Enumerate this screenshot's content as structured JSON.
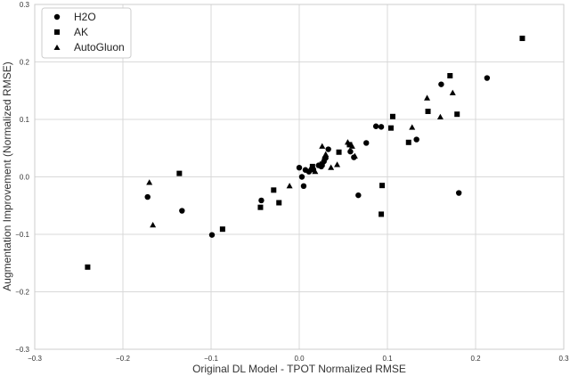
{
  "chart_data": {
    "type": "scatter",
    "xlabel": "Original DL Model - TPOT Normalized RMSE",
    "ylabel": "Augmentation Improvement (Normalized RMSE)",
    "xlim": [
      -0.3,
      0.3
    ],
    "ylim": [
      -0.3,
      0.3
    ],
    "xticks": [
      -0.3,
      -0.2,
      -0.1,
      0.0,
      0.1,
      0.2,
      0.3
    ],
    "yticks": [
      -0.3,
      -0.2,
      -0.1,
      0.0,
      0.1,
      0.2,
      0.3
    ],
    "xtick_labels": [
      "−0.3",
      "−0.2",
      "−0.1",
      "0.0",
      "0.1",
      "0.2",
      "0.3"
    ],
    "ytick_labels": [
      "−0.3",
      "−0.2",
      "−0.1",
      "0.0",
      "0.1",
      "0.2",
      "0.3"
    ],
    "grid": true,
    "legend_position": "top-left",
    "series": [
      {
        "name": "H2O",
        "marker": "circle",
        "points": [
          [
            -0.172,
            -0.035
          ],
          [
            -0.133,
            -0.059
          ],
          [
            -0.099,
            -0.101
          ],
          [
            -0.043,
            -0.041
          ],
          [
            0.0,
            0.016
          ],
          [
            0.003,
            0.0
          ],
          [
            0.005,
            -0.016
          ],
          [
            0.007,
            0.012
          ],
          [
            0.011,
            0.009
          ],
          [
            0.016,
            0.013
          ],
          [
            0.022,
            0.02
          ],
          [
            0.025,
            0.018
          ],
          [
            0.028,
            0.027
          ],
          [
            0.029,
            0.032
          ],
          [
            0.03,
            0.033
          ],
          [
            0.033,
            0.048
          ],
          [
            0.058,
            0.044
          ],
          [
            0.062,
            0.034
          ],
          [
            0.067,
            -0.032
          ],
          [
            0.076,
            0.059
          ],
          [
            0.087,
            0.088
          ],
          [
            0.093,
            0.087
          ],
          [
            0.133,
            0.065
          ],
          [
            0.161,
            0.161
          ],
          [
            0.181,
            -0.028
          ],
          [
            0.213,
            0.172
          ]
        ]
      },
      {
        "name": "AK",
        "marker": "square",
        "points": [
          [
            -0.24,
            -0.157
          ],
          [
            -0.136,
            0.006
          ],
          [
            -0.087,
            -0.091
          ],
          [
            -0.044,
            -0.053
          ],
          [
            -0.029,
            -0.023
          ],
          [
            -0.023,
            -0.045
          ],
          [
            0.015,
            0.018
          ],
          [
            0.026,
            0.022
          ],
          [
            0.045,
            0.043
          ],
          [
            0.057,
            0.056
          ],
          [
            0.094,
            -0.015
          ],
          [
            0.093,
            -0.065
          ],
          [
            0.104,
            0.085
          ],
          [
            0.106,
            0.105
          ],
          [
            0.124,
            0.06
          ],
          [
            0.146,
            0.114
          ],
          [
            0.171,
            0.176
          ],
          [
            0.179,
            0.109
          ],
          [
            0.253,
            0.241
          ]
        ]
      },
      {
        "name": "AutoGluon",
        "marker": "triangle",
        "points": [
          [
            -0.17,
            -0.01
          ],
          [
            -0.166,
            -0.084
          ],
          [
            -0.011,
            -0.016
          ],
          [
            0.012,
            0.012
          ],
          [
            0.018,
            0.009
          ],
          [
            0.026,
            0.053
          ],
          [
            0.03,
            0.039
          ],
          [
            0.036,
            0.016
          ],
          [
            0.043,
            0.021
          ],
          [
            0.055,
            0.06
          ],
          [
            0.06,
            0.053
          ],
          [
            0.063,
            0.036
          ],
          [
            0.128,
            0.086
          ],
          [
            0.145,
            0.137
          ],
          [
            0.16,
            0.104
          ],
          [
            0.174,
            0.146
          ]
        ]
      }
    ]
  }
}
